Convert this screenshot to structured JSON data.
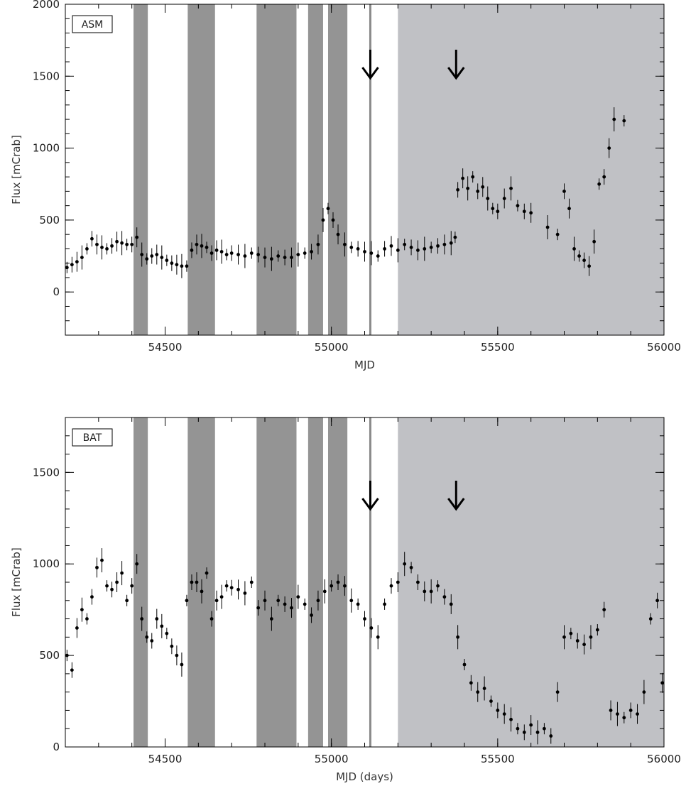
{
  "chart_data": [
    {
      "type": "scatter",
      "tag": "ASM",
      "xlabel": "MJD",
      "ylabel": "Flux  [mCrab]",
      "xlim": [
        54200,
        56000
      ],
      "ylim": [
        -300,
        2000
      ],
      "xticks": [
        54500,
        55000,
        55500,
        56000
      ],
      "yticks": [
        0,
        500,
        1000,
        1500,
        2000
      ],
      "shaded_bands": [
        [
          54405,
          54448
        ],
        [
          54568,
          54650
        ],
        [
          54775,
          54895
        ],
        [
          54930,
          54975
        ],
        [
          54990,
          55048
        ]
      ],
      "marker_line_x": 55117,
      "background_region": [
        55200,
        56000
      ],
      "arrows_x": [
        55117,
        55375
      ],
      "series": [
        {
          "x": [
            54205,
            54220,
            54235,
            54250,
            54265,
            54280,
            54295,
            54310,
            54325,
            54340,
            54355,
            54370,
            54385,
            54400,
            54415,
            54430,
            54445,
            54460,
            54475,
            54490,
            54505,
            54520,
            54535,
            54550,
            54565,
            54580,
            54595,
            54610,
            54625,
            54640,
            54655,
            54670,
            54685,
            54700,
            54720,
            54740,
            54760,
            54780,
            54800,
            54820,
            54840,
            54860,
            54880,
            54900,
            54920,
            54940,
            54960,
            54975,
            54990,
            55005,
            55020,
            55040,
            55060,
            55080,
            55100,
            55120,
            55140,
            55160,
            55180,
            55200,
            55220,
            55240,
            55260,
            55280,
            55300,
            55320,
            55340,
            55360,
            55372,
            55380,
            55395,
            55410,
            55425,
            55440,
            55455,
            55470,
            55485,
            55500,
            55520,
            55540,
            55560,
            55580,
            55600,
            55650,
            55680,
            55700,
            55715,
            55730,
            55745,
            55760,
            55775,
            55790,
            55805,
            55820,
            55835,
            55850,
            55880
          ],
          "y": [
            170,
            190,
            210,
            240,
            300,
            370,
            330,
            310,
            300,
            320,
            350,
            340,
            330,
            330,
            380,
            260,
            230,
            250,
            260,
            240,
            220,
            200,
            190,
            180,
            180,
            290,
            330,
            320,
            310,
            270,
            290,
            280,
            260,
            270,
            260,
            250,
            270,
            260,
            240,
            230,
            250,
            240,
            240,
            260,
            270,
            280,
            330,
            500,
            580,
            500,
            400,
            330,
            310,
            300,
            280,
            270,
            250,
            300,
            320,
            290,
            330,
            310,
            290,
            300,
            310,
            320,
            330,
            340,
            380,
            710,
            790,
            720,
            800,
            700,
            730,
            650,
            580,
            560,
            650,
            720,
            600,
            560,
            550,
            450,
            400,
            700,
            580,
            300,
            250,
            220,
            180,
            350,
            750,
            800,
            1000,
            1200,
            1190
          ]
        }
      ]
    },
    {
      "type": "scatter",
      "tag": "BAT",
      "xlabel": "MJD (days)",
      "ylabel": "Flux  [mCrab]",
      "xlim": [
        54200,
        56000
      ],
      "ylim": [
        0,
        1800
      ],
      "xticks": [
        54500,
        55000,
        55500,
        56000
      ],
      "yticks": [
        0,
        500,
        1000,
        1500
      ],
      "shaded_bands": [
        [
          54405,
          54448
        ],
        [
          54568,
          54650
        ],
        [
          54775,
          54895
        ],
        [
          54930,
          54975
        ],
        [
          54990,
          55048
        ]
      ],
      "marker_line_x": 55117,
      "background_region": [
        55200,
        56000
      ],
      "arrows_x": [
        55117,
        55375
      ],
      "series": [
        {
          "x": [
            54205,
            54220,
            54235,
            54250,
            54265,
            54280,
            54295,
            54310,
            54325,
            54340,
            54355,
            54370,
            54385,
            54400,
            54415,
            54430,
            54445,
            54460,
            54475,
            54490,
            54505,
            54520,
            54535,
            54550,
            54565,
            54580,
            54595,
            54610,
            54625,
            54640,
            54655,
            54670,
            54685,
            54700,
            54720,
            54740,
            54760,
            54780,
            54800,
            54820,
            54840,
            54860,
            54880,
            54900,
            54920,
            54940,
            54960,
            54980,
            55000,
            55020,
            55040,
            55060,
            55080,
            55100,
            55120,
            55140,
            55160,
            55180,
            55200,
            55220,
            55240,
            55260,
            55280,
            55300,
            55320,
            55340,
            55360,
            55380,
            55400,
            55420,
            55440,
            55460,
            55480,
            55500,
            55520,
            55540,
            55560,
            55580,
            55600,
            55620,
            55640,
            55660,
            55680,
            55700,
            55720,
            55740,
            55760,
            55780,
            55800,
            55820,
            55840,
            55860,
            55880,
            55900,
            55920,
            55940,
            55960,
            55980,
            55995
          ],
          "y": [
            500,
            420,
            650,
            750,
            700,
            820,
            980,
            1020,
            880,
            860,
            900,
            950,
            800,
            880,
            1000,
            700,
            600,
            580,
            700,
            660,
            620,
            550,
            500,
            450,
            800,
            900,
            900,
            850,
            950,
            700,
            800,
            820,
            880,
            870,
            860,
            840,
            900,
            760,
            800,
            700,
            800,
            780,
            760,
            820,
            780,
            720,
            800,
            850,
            880,
            900,
            880,
            800,
            780,
            700,
            650,
            600,
            780,
            880,
            900,
            1000,
            980,
            900,
            850,
            850,
            880,
            820,
            780,
            600,
            450,
            350,
            300,
            320,
            250,
            200,
            180,
            150,
            100,
            80,
            120,
            80,
            100,
            60,
            300,
            600,
            620,
            580,
            560,
            600,
            640,
            750,
            200,
            180,
            160,
            200,
            180,
            300,
            700,
            800,
            350
          ]
        }
      ]
    }
  ]
}
